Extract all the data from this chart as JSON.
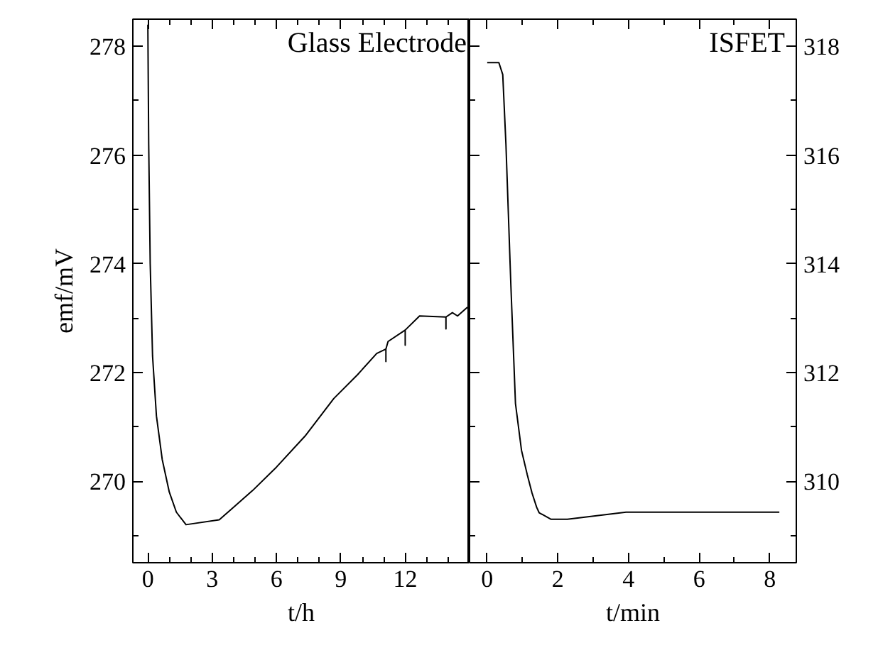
{
  "chart_data": [
    {
      "type": "line",
      "title": "Glass Electrode",
      "xlabel": "t/h",
      "ylabel": "emf/mV",
      "series": [
        {
          "color": "#000000",
          "x": [
            0,
            0.04,
            0.11,
            0.22,
            0.4,
            0.67,
            1.0,
            1.33,
            1.78,
            3.33,
            4.0,
            4.89,
            6.0,
            7.33,
            8.67,
            9.78,
            10.67,
            11.1,
            11.1,
            11.1,
            11.2,
            12.0,
            12.0,
            12.0,
            12.67,
            13.9,
            13.9,
            13.9,
            14.2,
            14.44,
            14.9
          ],
          "values": [
            278.4,
            276.2,
            274.0,
            272.3,
            271.2,
            270.4,
            269.8,
            269.43,
            269.2,
            269.29,
            269.52,
            269.83,
            270.26,
            270.83,
            271.52,
            271.96,
            272.35,
            272.43,
            272.2,
            272.43,
            272.57,
            272.78,
            272.5,
            272.78,
            273.04,
            273.02,
            272.8,
            273.02,
            273.1,
            273.04,
            273.2
          ]
        }
      ],
      "xlim": [
        -0.7,
        15.0
      ],
      "ylim": [
        268.5,
        278.5
      ],
      "xticks": [
        0,
        {
          "value": 1,
          "label": null
        },
        {
          "value": 2,
          "label": null
        },
        3,
        {
          "value": 4,
          "label": null
        },
        {
          "value": 5,
          "label": null
        },
        6,
        {
          "value": 7,
          "label": null
        },
        {
          "value": 8,
          "label": null
        },
        9,
        {
          "value": 10,
          "label": null
        },
        {
          "value": 11,
          "label": null
        },
        12,
        {
          "value": 13,
          "label": null
        },
        {
          "value": 14,
          "label": null
        }
      ],
      "yticks": [
        {
          "value": 269,
          "label": null
        },
        270,
        {
          "value": 271,
          "label": null
        },
        272,
        {
          "value": 273,
          "label": null
        },
        274,
        {
          "value": 275,
          "label": null
        },
        276,
        {
          "value": 277,
          "label": null
        },
        278
      ],
      "grid": false,
      "marker": "none",
      "line_style": "solid"
    },
    {
      "type": "line",
      "title": "ISFET",
      "xlabel": "t/min",
      "series": [
        {
          "color": "#000000",
          "x": [
            0,
            0.33,
            0.44,
            0.53,
            0.67,
            0.8,
            0.97,
            1.13,
            1.27,
            1.4,
            1.47,
            1.8,
            2.27,
            3.93,
            8.27
          ],
          "values": [
            317.7,
            317.7,
            317.48,
            316.2,
            313.6,
            311.43,
            310.57,
            310.13,
            309.78,
            309.52,
            309.42,
            309.3,
            309.3,
            309.43,
            309.43
          ]
        }
      ],
      "xlim": [
        -0.5,
        8.75
      ],
      "ylim": [
        308.5,
        318.5
      ],
      "xticks": [
        0,
        {
          "value": 1,
          "label": null
        },
        2,
        {
          "value": 3,
          "label": null
        },
        4,
        {
          "value": 5,
          "label": null
        },
        6,
        {
          "value": 7,
          "label": null
        },
        8
      ],
      "yticks": [
        {
          "value": 309,
          "label": null
        },
        310,
        {
          "value": 311,
          "label": null
        },
        312,
        {
          "value": 313,
          "label": null
        },
        314,
        {
          "value": 315,
          "label": null
        },
        316,
        {
          "value": 317,
          "label": null
        },
        318
      ],
      "grid": false,
      "marker": "none",
      "line_style": "solid"
    }
  ]
}
